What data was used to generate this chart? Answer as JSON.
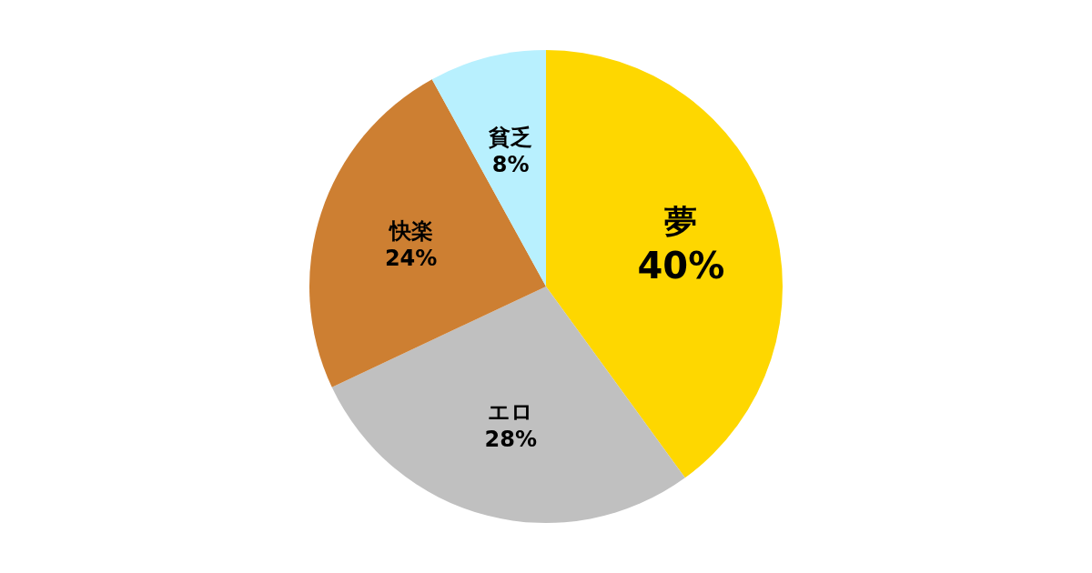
{
  "chart_data": {
    "type": "pie",
    "categories": [
      "夢",
      "エロ",
      "快楽",
      "貧乏"
    ],
    "values": [
      40,
      28,
      24,
      8
    ],
    "colors": [
      "#fed700",
      "#c0c0c0",
      "#cd7f32",
      "#b8f0fe"
    ],
    "value_labels": [
      "40%",
      "28%",
      "24%",
      "8%"
    ]
  }
}
